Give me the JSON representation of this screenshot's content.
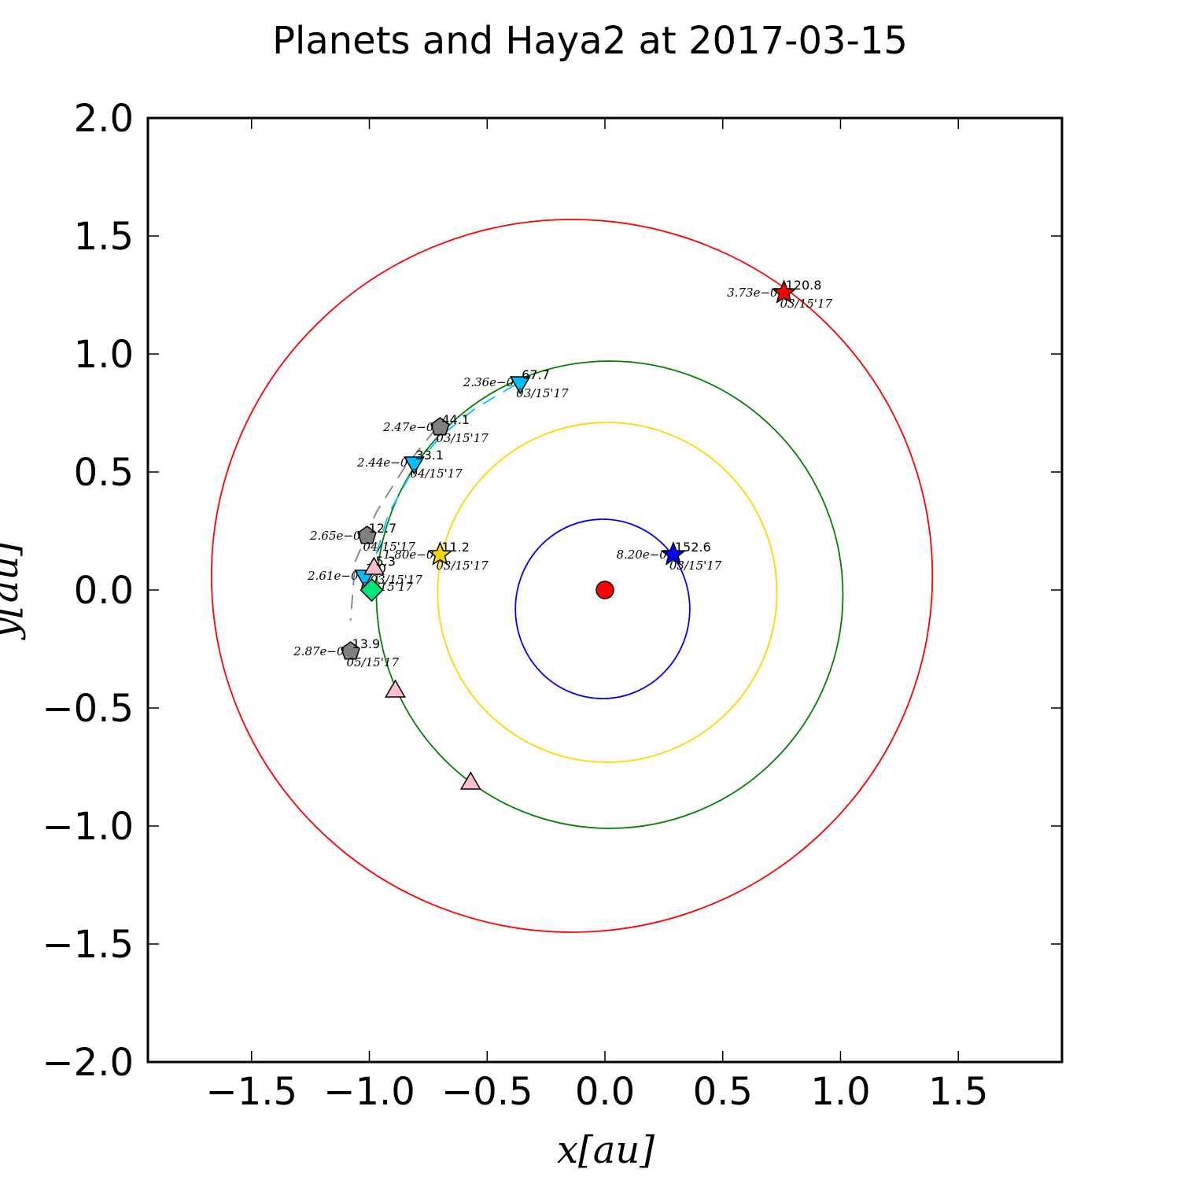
{
  "chart_data": {
    "type": "scatter",
    "title": "Planets and Haya2 at 2017-03-15",
    "xlabel": "x[au]",
    "ylabel": "y[au]",
    "xlim": [
      -1.94,
      1.94
    ],
    "ylim": [
      -2.0,
      2.0
    ],
    "xticks": [
      -1.5,
      -1.0,
      -0.5,
      0.0,
      0.5,
      1.0,
      1.5
    ],
    "xtick_labels": [
      "−1.5",
      "−1.0",
      "−0.5",
      "0.0",
      "0.5",
      "1.0",
      "1.5"
    ],
    "yticks": [
      2.0,
      1.5,
      1.0,
      0.5,
      0.0,
      -0.5,
      -1.0,
      -1.5,
      -2.0
    ],
    "ytick_labels": [
      "2.0",
      "1.5",
      "1.0",
      "0.5",
      "0.0",
      "−0.5",
      "−1.0",
      "−1.5",
      "−2.0"
    ],
    "grid": false,
    "orbits": [
      {
        "color": "#0000ff",
        "cx": -0.01,
        "cy": -0.08,
        "rx": 0.37,
        "ry": 0.38
      },
      {
        "color": "#ffd700",
        "cx": 0.01,
        "cy": -0.01,
        "rx": 0.72,
        "ry": 0.72
      },
      {
        "color": "#008000",
        "cx": 0.02,
        "cy": -0.02,
        "rx": 0.99,
        "ry": 0.99
      },
      {
        "color": "#ff0000",
        "cx": -0.14,
        "cy": 0.06,
        "rx": 1.53,
        "ry": 1.51
      }
    ],
    "dashed_paths": [
      {
        "color": "#00bfff",
        "points": [
          [
            -0.38,
            0.87
          ],
          [
            -0.55,
            0.77
          ],
          [
            -0.7,
            0.65
          ],
          [
            -0.82,
            0.5
          ],
          [
            -0.92,
            0.32
          ],
          [
            -0.98,
            0.12
          ],
          [
            -1.0,
            0.03
          ]
        ]
      },
      {
        "color": "#808080",
        "points": [
          [
            -0.72,
            0.68
          ],
          [
            -0.85,
            0.52
          ],
          [
            -0.97,
            0.33
          ],
          [
            -1.06,
            0.12
          ],
          [
            -1.08,
            -0.13
          ]
        ]
      }
    ],
    "sun": {
      "x": 0.0,
      "y": 0.0,
      "color": "#ff0000"
    },
    "markers": [
      {
        "shape": "star",
        "color": "#ff0000",
        "x": 0.76,
        "y": 1.26,
        "value": "120.8",
        "dist": "3.73e−0",
        "date": "03/15'17"
      },
      {
        "shape": "star",
        "color": "#0000ff",
        "x": 0.29,
        "y": 0.15,
        "value": "152.6",
        "dist": "8.20e−0",
        "date": "03/15'17"
      },
      {
        "shape": "star",
        "color": "#ffd700",
        "x": -0.7,
        "y": 0.15,
        "value": "11.2",
        "dist": "1.80e−0",
        "date": "03/15'17"
      },
      {
        "shape": "triangle-down",
        "color": "#00bfff",
        "x": -0.36,
        "y": 0.88,
        "value": "67.7",
        "dist": "2.36e−0",
        "date": "03/15'17"
      },
      {
        "shape": "triangle-down",
        "color": "#00bfff",
        "x": -0.81,
        "y": 0.54,
        "value": "33.1",
        "dist": "2.44e−0",
        "date": "04/15'17"
      },
      {
        "shape": "triangle-down",
        "color": "#00bfff",
        "x": -1.02,
        "y": 0.06,
        "value": "2.0",
        "dist": "2.61e−0",
        "date": "05/15'17"
      },
      {
        "shape": "pentagon",
        "color": "#808080",
        "x": -0.7,
        "y": 0.69,
        "value": "44.1",
        "dist": "2.47e−0",
        "date": "03/15'17"
      },
      {
        "shape": "pentagon",
        "color": "#808080",
        "x": -1.01,
        "y": 0.23,
        "value": "12.7",
        "dist": "2.65e−0",
        "date": "04/15'17"
      },
      {
        "shape": "pentagon",
        "color": "#808080",
        "x": -1.08,
        "y": -0.26,
        "value": "13.9",
        "dist": "2.87e−0",
        "date": "05/15'17"
      },
      {
        "shape": "triangle-up",
        "color": "#ffc0cb",
        "x": -0.98,
        "y": 0.09,
        "value": "5.3",
        "dist": "",
        "date": "03/15'17"
      },
      {
        "shape": "triangle-up",
        "color": "#ffc0cb",
        "x": -0.89,
        "y": -0.43,
        "value": "",
        "dist": "",
        "date": ""
      },
      {
        "shape": "triangle-up",
        "color": "#ffc0cb",
        "x": -0.57,
        "y": -0.82,
        "value": "",
        "dist": "",
        "date": ""
      },
      {
        "shape": "diamond",
        "color": "#00e57a",
        "x": -0.99,
        "y": 0.0,
        "value": "",
        "dist": "",
        "date": ""
      }
    ]
  }
}
